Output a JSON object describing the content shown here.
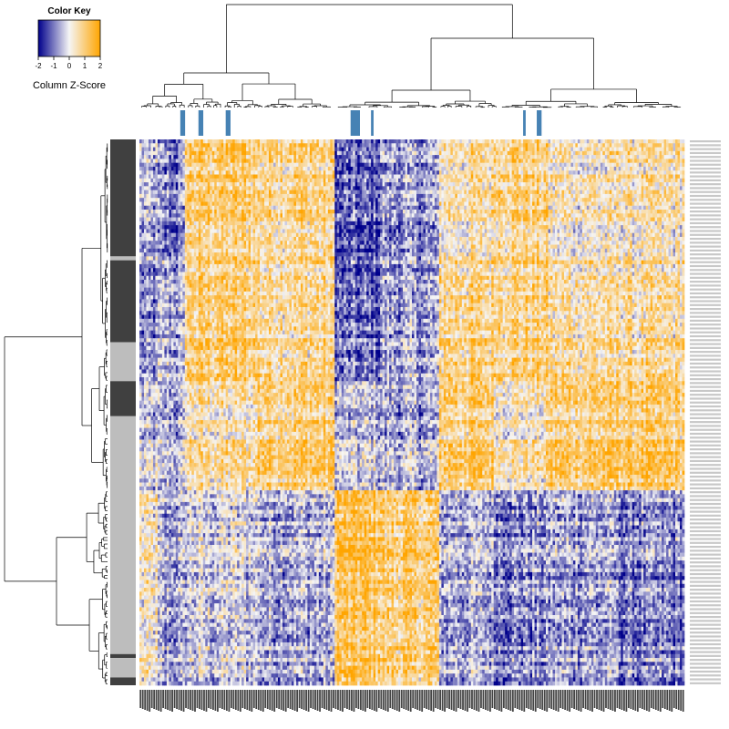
{
  "chart_data": {
    "type": "heatmap",
    "title": "",
    "xlabel": "",
    "ylabel": "",
    "legend": {
      "title": "Color Key",
      "scale_label": "Column Z-Score",
      "ticks": [
        "-2",
        "-1",
        "0",
        "1",
        "2"
      ],
      "range": [
        -2,
        2
      ],
      "colors": {
        "low": "#00008b",
        "mid": "#f5f5f5",
        "high": "#ffa500"
      },
      "placement": "top-left"
    },
    "n_rows": 140,
    "n_cols": 240,
    "row_groups": [
      {
        "from": 0,
        "to": 30,
        "color": "#404040"
      },
      {
        "from": 30,
        "to": 31,
        "color": "#bdbdbd"
      },
      {
        "from": 31,
        "to": 52,
        "color": "#404040"
      },
      {
        "from": 52,
        "to": 62,
        "color": "#bdbdbd"
      },
      {
        "from": 62,
        "to": 71,
        "color": "#404040"
      },
      {
        "from": 71,
        "to": 132,
        "color": "#bdbdbd"
      },
      {
        "from": 132,
        "to": 133,
        "color": "#404040"
      },
      {
        "from": 133,
        "to": 138,
        "color": "#bdbdbd"
      },
      {
        "from": 138,
        "to": 140,
        "color": "#404040"
      }
    ],
    "col_markers": [
      18,
      19,
      26,
      27,
      38,
      39,
      93,
      94,
      95,
      96,
      102,
      169,
      175,
      176
    ],
    "col_marker_color": "#4682b4",
    "col_blocks": [
      {
        "from": 0,
        "to": 8,
        "pattern": [
          -0.6,
          -1.0,
          -0.4,
          0.3
        ]
      },
      {
        "from": 8,
        "to": 20,
        "pattern": [
          -1.0,
          -0.6,
          -0.6,
          -0.6
        ]
      },
      {
        "from": 20,
        "to": 52,
        "pattern": [
          1.0,
          1.0,
          0.5,
          -0.2
        ]
      },
      {
        "from": 52,
        "to": 86,
        "pattern": [
          0.8,
          0.7,
          1.0,
          -0.5
        ]
      },
      {
        "from": 86,
        "to": 106,
        "pattern": [
          -1.3,
          -1.2,
          -0.4,
          1.3
        ]
      },
      {
        "from": 106,
        "to": 132,
        "pattern": [
          -0.8,
          -0.7,
          -0.6,
          1.0
        ]
      },
      {
        "from": 132,
        "to": 156,
        "pattern": [
          0.5,
          0.8,
          1.0,
          -0.5
        ]
      },
      {
        "from": 156,
        "to": 180,
        "pattern": [
          0.9,
          0.9,
          0.4,
          -0.8
        ]
      },
      {
        "from": 180,
        "to": 210,
        "pattern": [
          0.3,
          0.6,
          1.0,
          -0.6
        ]
      },
      {
        "from": 210,
        "to": 240,
        "pattern": [
          0.4,
          0.6,
          1.0,
          -0.9
        ]
      }
    ],
    "row_blocks": [
      {
        "from": 0,
        "to": 31,
        "pattern_index": 0
      },
      {
        "from": 31,
        "to": 62,
        "pattern_index": 1
      },
      {
        "from": 62,
        "to": 90,
        "pattern_index": 2
      },
      {
        "from": 90,
        "to": 140,
        "pattern_index": 3
      }
    ]
  }
}
